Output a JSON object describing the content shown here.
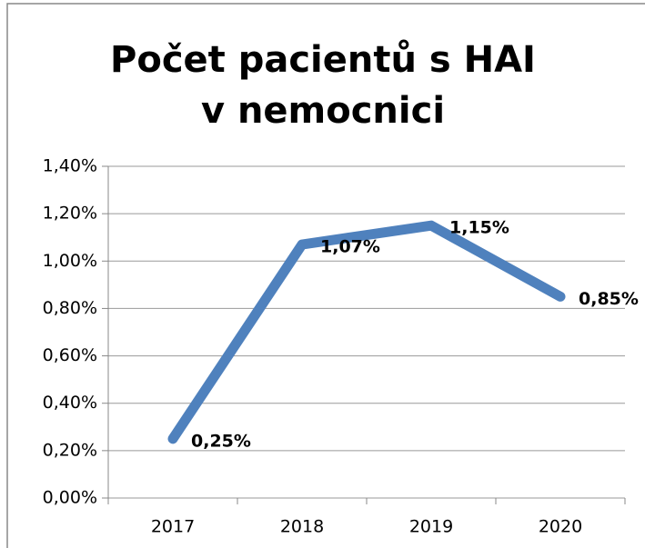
{
  "chart_data": {
    "type": "line",
    "title": "Počet pacientů s HAI v nemocnici",
    "categories": [
      "2017",
      "2018",
      "2019",
      "2020"
    ],
    "values": [
      0.25,
      1.07,
      1.15,
      0.85
    ],
    "value_labels": [
      "0,25%",
      "1,07%",
      "1,15%",
      "0,85%"
    ],
    "color": "#4f81bd",
    "ylim": [
      0,
      1.4
    ],
    "yticks": [
      {
        "value": 0,
        "label": "0,00%"
      },
      {
        "value": 0.2,
        "label": "0,20%"
      },
      {
        "value": 0.4,
        "label": "0,40%"
      },
      {
        "value": 0.6,
        "label": "0,60%"
      },
      {
        "value": 0.8,
        "label": "0,80%"
      },
      {
        "value": 1.0,
        "label": "1,00%"
      },
      {
        "value": 1.2,
        "label": "1,20%"
      },
      {
        "value": 1.4,
        "label": "1,40%"
      }
    ],
    "grid": true
  }
}
